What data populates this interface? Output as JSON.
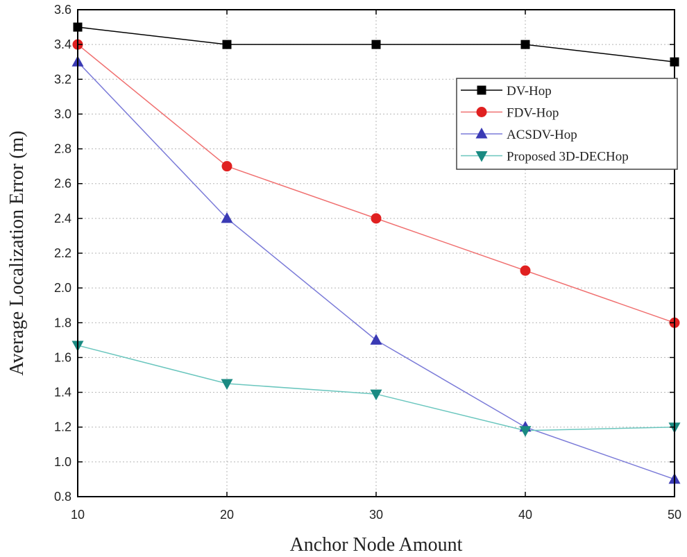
{
  "chart_data": {
    "type": "line",
    "title": "",
    "xlabel": "Anchor Node Amount",
    "ylabel": "Average Localization Error (m)",
    "x": [
      10,
      20,
      30,
      40,
      50
    ],
    "xlim": [
      10,
      50
    ],
    "ylim": [
      0.8,
      3.6
    ],
    "xticks": [
      "10",
      "20",
      "30",
      "40",
      "50"
    ],
    "yticks": [
      "0.8",
      "1.0",
      "1.2",
      "1.4",
      "1.6",
      "1.8",
      "2.0",
      "2.2",
      "2.4",
      "2.6",
      "2.8",
      "3.0",
      "3.2",
      "3.4",
      "3.6"
    ],
    "grid": true,
    "legend_position": "right",
    "series": [
      {
        "name": "DV-Hop",
        "marker": "square",
        "color": "#000000",
        "marker_color": "#000000",
        "values": [
          3.5,
          3.4,
          3.4,
          3.4,
          3.3
        ]
      },
      {
        "name": "FDV-Hop",
        "marker": "circle",
        "color": "#f07070",
        "marker_color": "#e02020",
        "values": [
          3.4,
          2.7,
          2.4,
          2.1,
          1.8
        ]
      },
      {
        "name": "ACSDV-Hop",
        "marker": "triangle-up",
        "color": "#7a7ad8",
        "marker_color": "#3a3ab4",
        "values": [
          3.3,
          2.4,
          1.7,
          1.2,
          0.9
        ]
      },
      {
        "name": "Proposed 3D-DECHop",
        "marker": "triangle-down",
        "color": "#6ac6be",
        "marker_color": "#1a8a82",
        "values": [
          1.67,
          1.45,
          1.39,
          1.18,
          1.2
        ]
      }
    ]
  }
}
